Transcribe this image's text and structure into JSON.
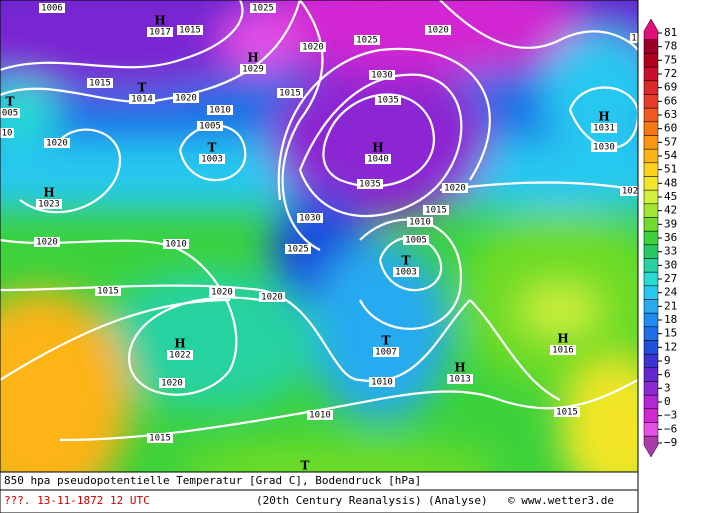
{
  "map": {
    "isobar_labels": [
      "1006",
      "1015",
      "1025",
      "1020",
      "1025",
      "1020",
      "1015",
      "1020",
      "1015",
      "1010",
      "1005",
      "1030",
      "1035",
      "1020",
      "1030",
      "1035",
      "1020",
      "1015",
      "1030",
      "1010",
      "1020",
      "1010",
      "1005",
      "1025",
      "1015",
      "1020",
      "1020",
      "1020",
      "1010",
      "1010",
      "1015",
      "1015",
      "10",
      "102",
      "1"
    ],
    "centers": [
      {
        "symbol": "H",
        "value": "1017"
      },
      {
        "symbol": "H",
        "value": "1029"
      },
      {
        "symbol": "T",
        "value": "1014"
      },
      {
        "symbol": "T",
        "value": "005"
      },
      {
        "symbol": "H",
        "value": "1040"
      },
      {
        "symbol": "T",
        "value": "1003"
      },
      {
        "symbol": "H",
        "value": "1031"
      },
      {
        "symbol": "H",
        "value": "1023"
      },
      {
        "symbol": "T",
        "value": "1003"
      },
      {
        "symbol": "H",
        "value": "1022"
      },
      {
        "symbol": "T",
        "value": "1007"
      },
      {
        "symbol": "H",
        "value": "1013"
      },
      {
        "symbol": "H",
        "value": "1016"
      },
      {
        "symbol": "T"
      }
    ]
  },
  "colorbar": {
    "labels": [
      "81",
      "78",
      "75",
      "72",
      "69",
      "66",
      "63",
      "60",
      "57",
      "54",
      "51",
      "48",
      "45",
      "42",
      "39",
      "36",
      "33",
      "30",
      "27",
      "24",
      "21",
      "18",
      "15",
      "12",
      "9",
      "6",
      "3",
      "0",
      "−3",
      "−6",
      "−9"
    ],
    "colors": [
      "#e0107a",
      "#9c0028",
      "#b0001c",
      "#c8102c",
      "#dc2828",
      "#e83c28",
      "#f05a1e",
      "#f57814",
      "#fa9614",
      "#fcb414",
      "#fdd21e",
      "#f2e628",
      "#d0f03c",
      "#a0e632",
      "#6edc28",
      "#3cd23c",
      "#28c864",
      "#28d2a0",
      "#28dcd2",
      "#28c8f0",
      "#28aaf0",
      "#1e8cf0",
      "#1e6ee6",
      "#1e50dc",
      "#3c32d2",
      "#6428d2",
      "#8c28d2",
      "#b428d2",
      "#d228d2",
      "#e650e6",
      "#aa3caa"
    ]
  },
  "footer": {
    "title": "850 hpa pseudopotentielle Temperatur [Grad C], Bodendruck [hPa]",
    "date": "???. 13-11-1872  12 UTC",
    "source": "(20th Century Reanalysis)",
    "kind": "(Analyse)",
    "credit": "© www.wetter3.de"
  }
}
